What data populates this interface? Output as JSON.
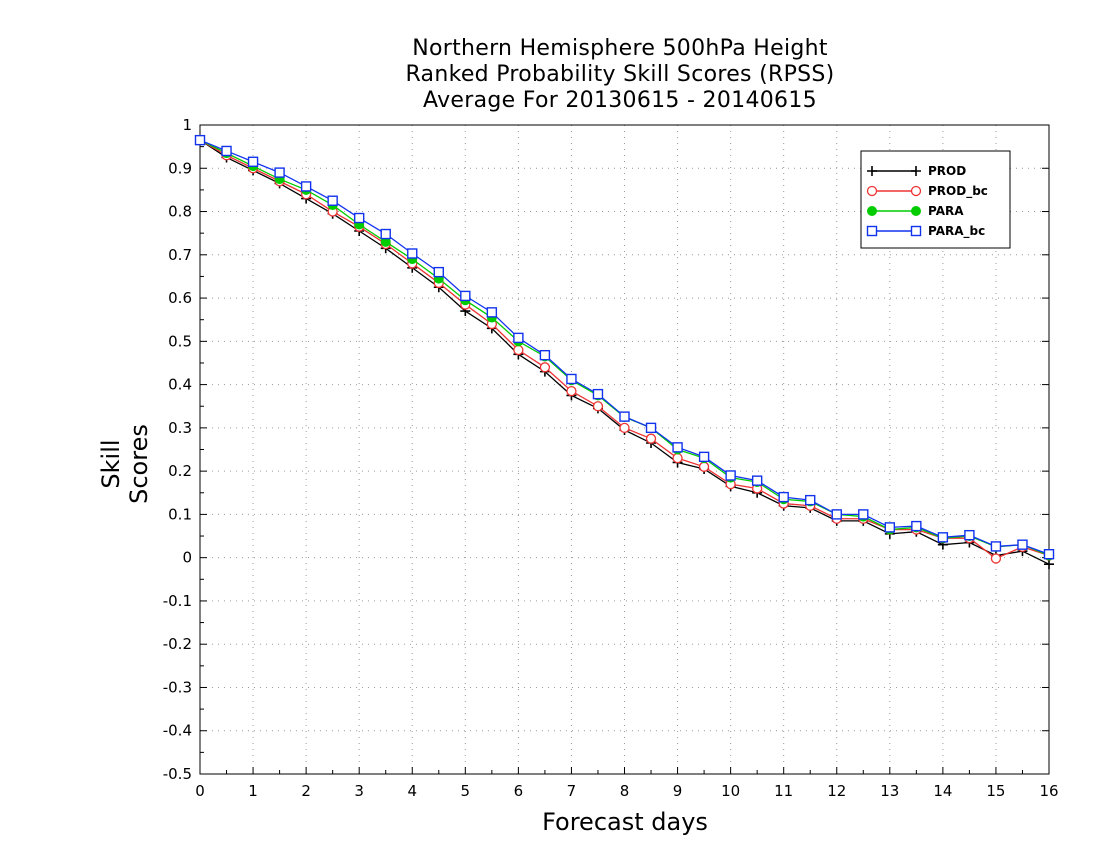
{
  "chart_data": {
    "type": "line",
    "title": [
      "Northern Hemisphere 500hPa Height",
      "Ranked Probability Skill Scores (RPSS)",
      "Average For 20130615 - 20140615"
    ],
    "xlabel": "Forecast days",
    "ylabel": "Skill Scores",
    "xlim": [
      0,
      16
    ],
    "ylim": [
      -0.5,
      1
    ],
    "xticks": [
      "0",
      "1",
      "2",
      "3",
      "4",
      "5",
      "6",
      "7",
      "8",
      "9",
      "10",
      "11",
      "12",
      "13",
      "14",
      "15",
      "16"
    ],
    "yticks": [
      "-0.5",
      "-0.4",
      "-0.3",
      "-0.2",
      "-0.1",
      "0",
      "0.1",
      "0.2",
      "0.3",
      "0.4",
      "0.5",
      "0.6",
      "0.7",
      "0.8",
      "0.9",
      "1"
    ],
    "grid": true,
    "legend_position": "top-right",
    "x": [
      0,
      0.5,
      1,
      1.5,
      2,
      2.5,
      3,
      3.5,
      4,
      4.5,
      5,
      5.5,
      6,
      6.5,
      7,
      7.5,
      8,
      8.5,
      9,
      9.5,
      10,
      10.5,
      11,
      11.5,
      12,
      12.5,
      13,
      13.5,
      14,
      14.5,
      15,
      15.5,
      16
    ],
    "series": [
      {
        "name": "PROD",
        "color": "#000000",
        "marker": "plus",
        "values": [
          0.965,
          0.925,
          0.895,
          0.865,
          0.83,
          0.795,
          0.755,
          0.715,
          0.67,
          0.625,
          0.57,
          0.53,
          0.47,
          0.43,
          0.375,
          0.345,
          0.295,
          0.265,
          0.22,
          0.205,
          0.165,
          0.15,
          0.12,
          0.115,
          0.085,
          0.085,
          0.055,
          0.06,
          0.03,
          0.035,
          0.005,
          0.015,
          -0.015
        ]
      },
      {
        "name": "PROD_bc",
        "color": "#ee3333",
        "marker": "circle",
        "values": [
          0.965,
          0.93,
          0.9,
          0.87,
          0.84,
          0.8,
          0.765,
          0.725,
          0.68,
          0.635,
          0.585,
          0.54,
          0.48,
          0.44,
          0.385,
          0.35,
          0.3,
          0.275,
          0.23,
          0.21,
          0.17,
          0.16,
          0.125,
          0.12,
          0.09,
          0.09,
          0.065,
          0.065,
          0.045,
          0.045,
          -0.002,
          0.025,
          0.005
        ]
      },
      {
        "name": "PARA",
        "color": "#00cc00",
        "marker": "filled-circle",
        "values": [
          0.965,
          0.935,
          0.905,
          0.875,
          0.85,
          0.815,
          0.77,
          0.73,
          0.69,
          0.645,
          0.595,
          0.555,
          0.5,
          0.465,
          0.41,
          0.375,
          0.325,
          0.3,
          0.25,
          0.23,
          0.185,
          0.175,
          0.135,
          0.13,
          0.1,
          0.095,
          0.065,
          0.07,
          0.045,
          0.05,
          0.025,
          0.03,
          0.005
        ]
      },
      {
        "name": "PARA_bc",
        "color": "#1133ee",
        "marker": "square",
        "values": [
          0.965,
          0.94,
          0.915,
          0.89,
          0.858,
          0.825,
          0.785,
          0.748,
          0.703,
          0.66,
          0.605,
          0.567,
          0.508,
          0.468,
          0.413,
          0.378,
          0.326,
          0.3,
          0.255,
          0.233,
          0.19,
          0.178,
          0.14,
          0.133,
          0.1,
          0.1,
          0.07,
          0.073,
          0.047,
          0.052,
          0.026,
          0.03,
          0.008
        ]
      }
    ]
  }
}
